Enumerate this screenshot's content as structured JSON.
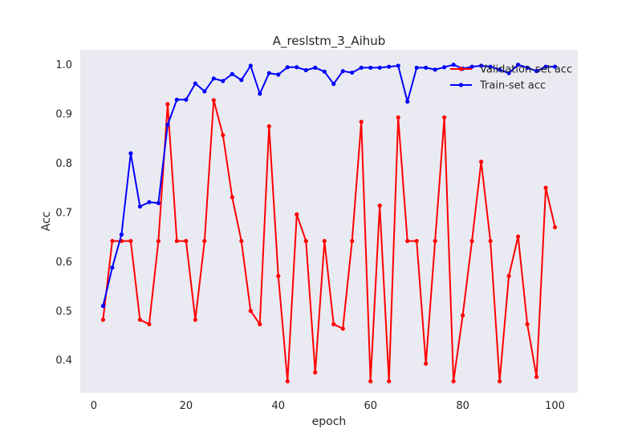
{
  "chart_data": {
    "type": "line",
    "title": "A_reslstm_3_Aihub",
    "xlabel": "epoch",
    "ylabel": "Acc",
    "xlim": [
      -2.95,
      104.95
    ],
    "ylim": [
      0.3335,
      1.0305
    ],
    "xticks": [
      0,
      20,
      40,
      60,
      80,
      100
    ],
    "yticks": [
      0.4,
      0.5,
      0.6,
      0.7,
      0.8,
      0.9,
      1.0
    ],
    "xtick_labels": [
      "0",
      "20",
      "40",
      "60",
      "80",
      "100"
    ],
    "ytick_labels": [
      "0.4",
      "0.5",
      "0.6",
      "0.7",
      "0.8",
      "0.9",
      "1.0"
    ],
    "grid": false,
    "legend_position": "top-right",
    "background": "#eaeaf2",
    "x": [
      2,
      4,
      6,
      8,
      10,
      12,
      14,
      16,
      18,
      20,
      22,
      24,
      26,
      28,
      30,
      32,
      34,
      36,
      38,
      40,
      42,
      44,
      46,
      48,
      50,
      52,
      54,
      56,
      58,
      60,
      62,
      64,
      66,
      68,
      70,
      72,
      74,
      76,
      78,
      80,
      82,
      84,
      86,
      88,
      90,
      92,
      94,
      96,
      98,
      100
    ],
    "series": [
      {
        "name": "Validation-set acc",
        "color": "#ff0000",
        "values": [
          0.482,
          0.642,
          0.642,
          0.642,
          0.482,
          0.473,
          0.642,
          0.92,
          0.642,
          0.642,
          0.482,
          0.642,
          0.928,
          0.857,
          0.731,
          0.642,
          0.5,
          0.473,
          0.875,
          0.571,
          0.357,
          0.696,
          0.642,
          0.375,
          0.642,
          0.473,
          0.464,
          0.642,
          0.884,
          0.357,
          0.714,
          0.357,
          0.893,
          0.642,
          0.642,
          0.393,
          0.642,
          0.893,
          0.357,
          0.491,
          0.642,
          0.803,
          0.642,
          0.357,
          0.571,
          0.651,
          0.473,
          0.366,
          0.75,
          0.67
        ]
      },
      {
        "name": "Train-set acc",
        "color": "#0000ff",
        "values": [
          0.51,
          0.588,
          0.655,
          0.82,
          0.712,
          0.721,
          0.719,
          0.878,
          0.929,
          0.929,
          0.962,
          0.946,
          0.972,
          0.967,
          0.981,
          0.969,
          0.998,
          0.941,
          0.983,
          0.98,
          0.995,
          0.995,
          0.989,
          0.994,
          0.986,
          0.961,
          0.987,
          0.984,
          0.994,
          0.994,
          0.994,
          0.996,
          0.998,
          0.925,
          0.994,
          0.994,
          0.99,
          0.995,
          1.0,
          0.992,
          0.996,
          0.998,
          0.996,
          0.99,
          0.983,
          1.0,
          0.994,
          0.987,
          0.996,
          0.996
        ]
      }
    ]
  }
}
